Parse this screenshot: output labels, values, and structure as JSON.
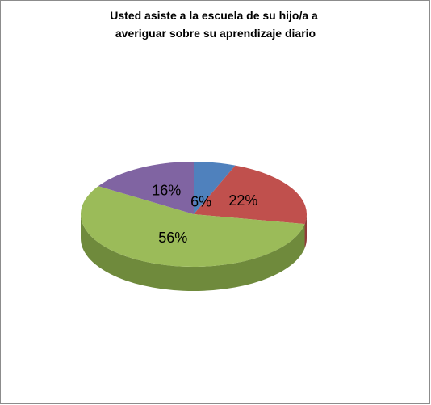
{
  "chart_data": {
    "type": "pie3d",
    "title": [
      "Usted asiste a la escuela  de su hijo/a  a",
      "averiguar sobre  su aprendizaje diario"
    ],
    "categories": [
      null,
      null,
      null,
      null
    ],
    "values": [
      6,
      22,
      56,
      16
    ],
    "value_labels": [
      "6%",
      "22%",
      "56%",
      "16%"
    ],
    "colors": [
      "#4f81bd",
      "#c0504d",
      "#9bbb59",
      "#8064a2"
    ],
    "side_colors": [
      "#3a6291",
      "#8f3b39",
      "#6f8a3c",
      "#5f4a7a"
    ]
  }
}
